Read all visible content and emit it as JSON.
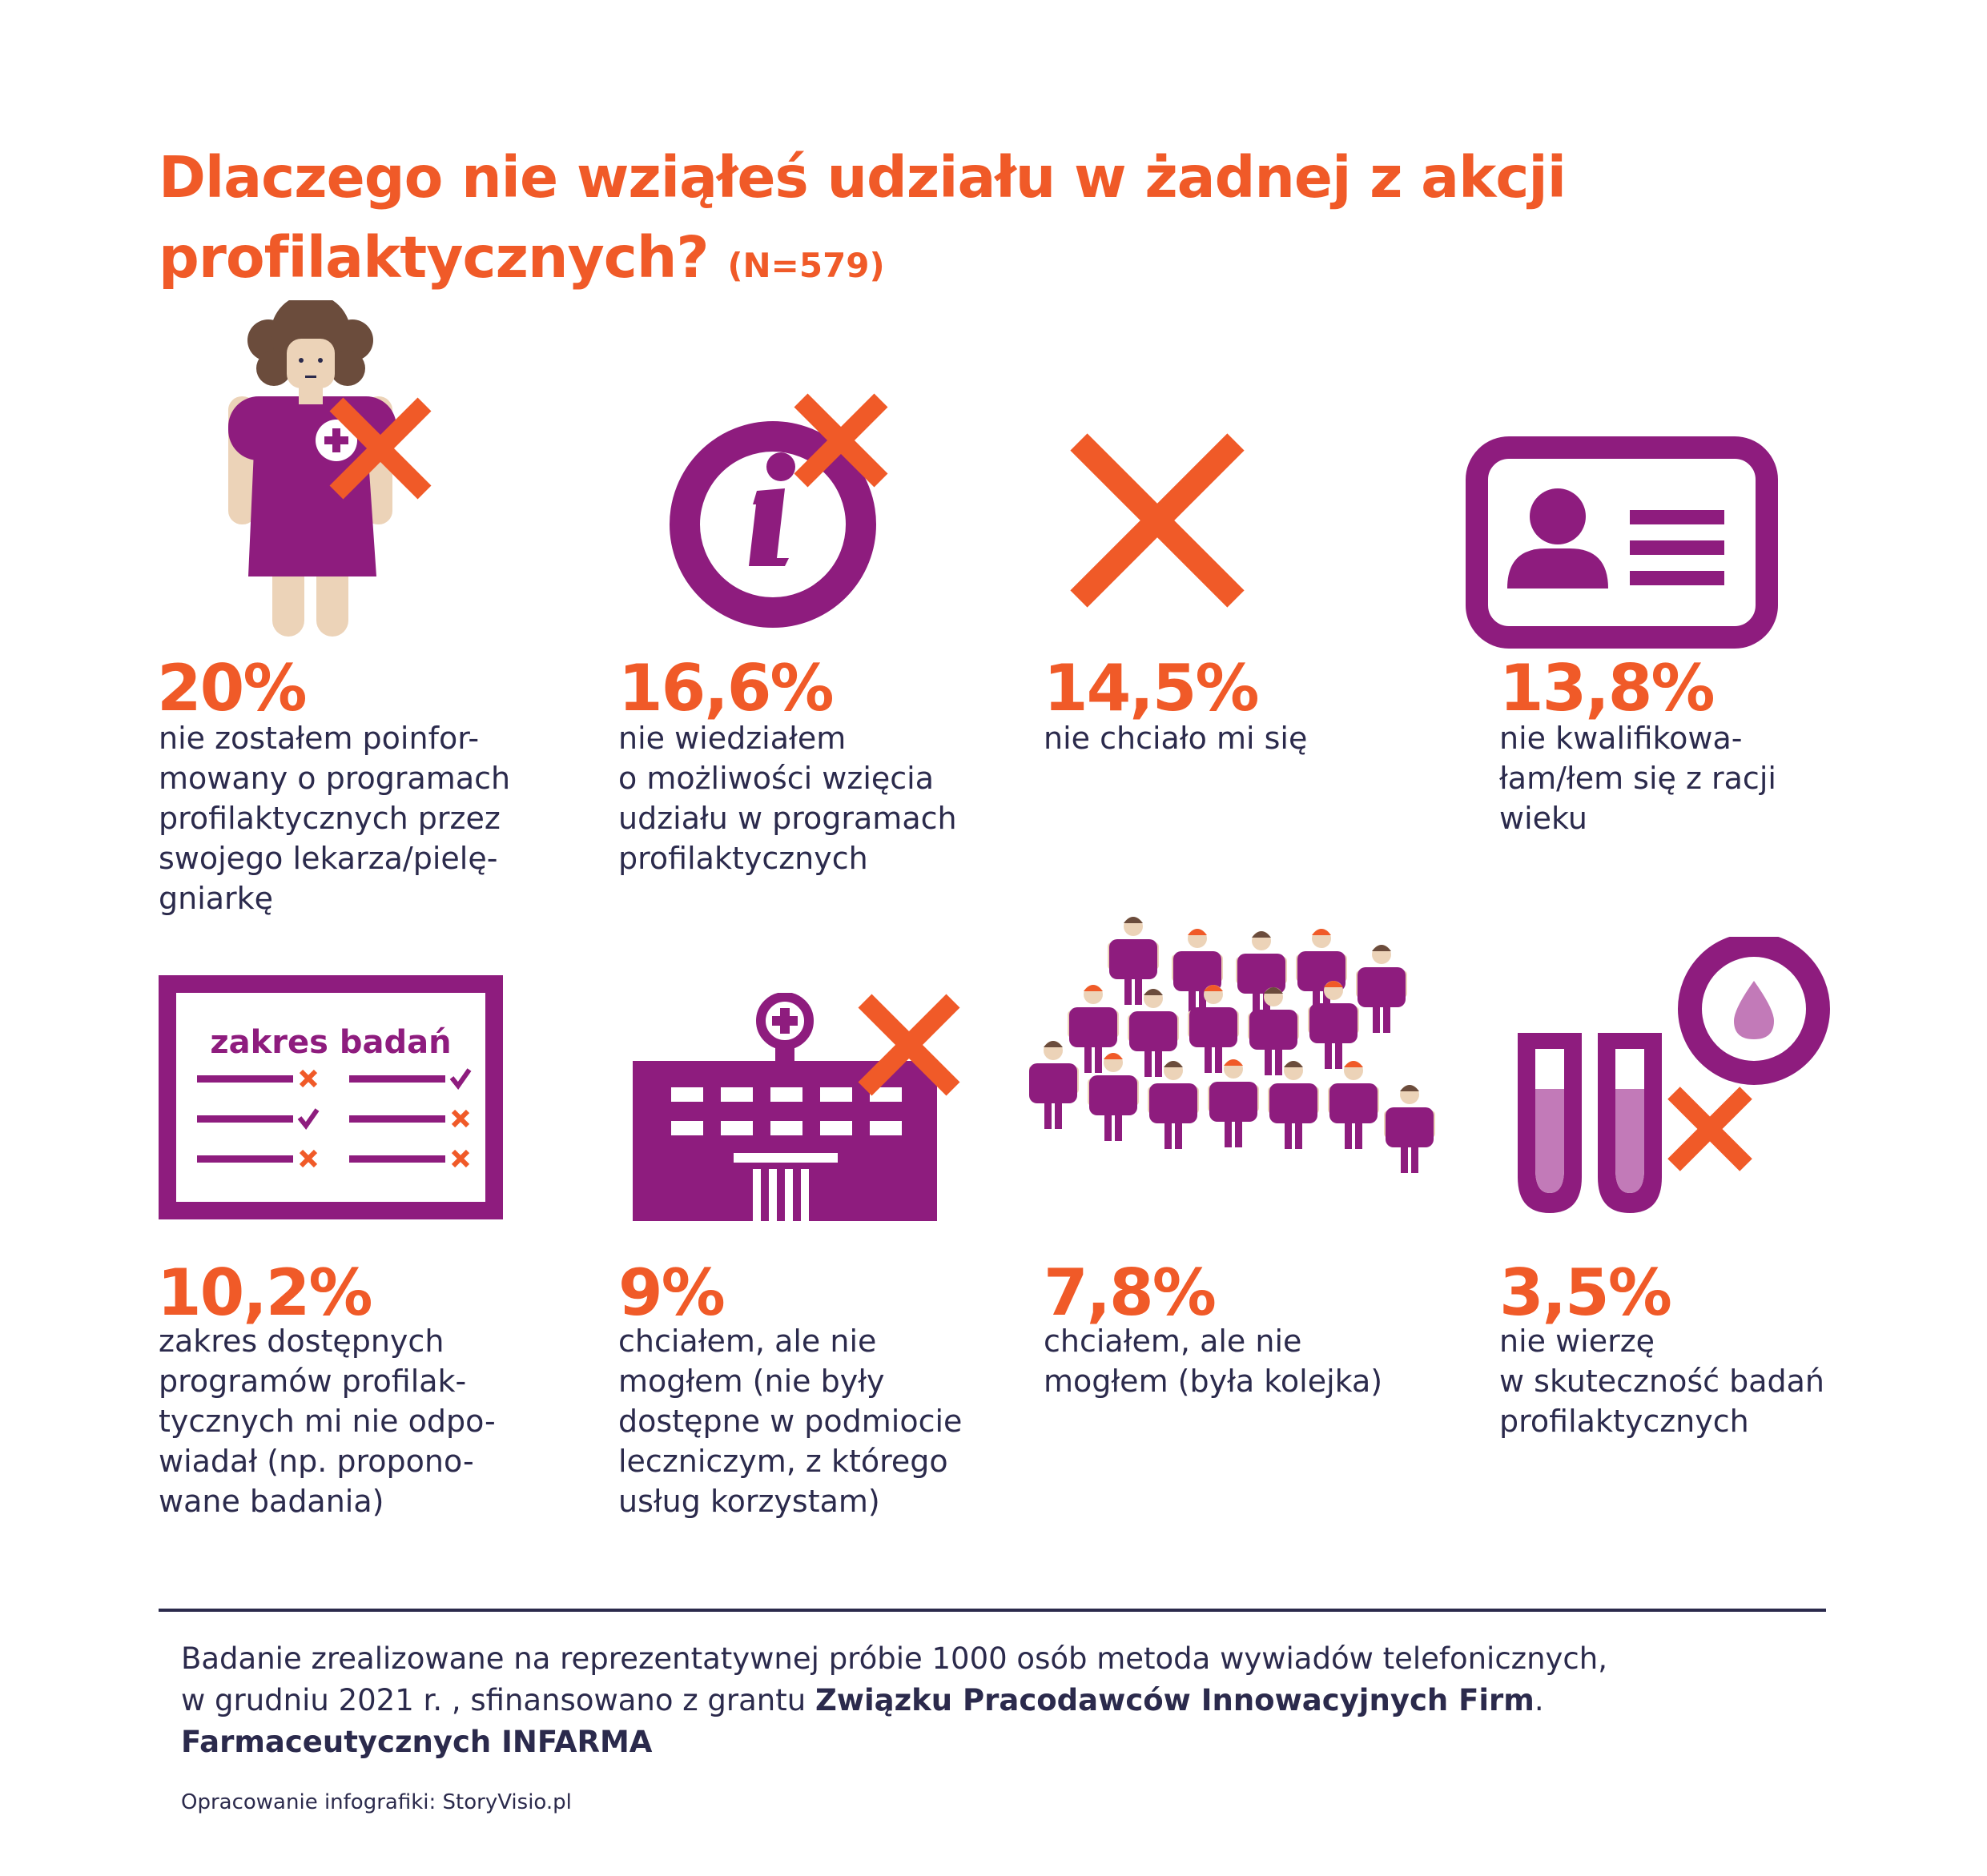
{
  "title": {
    "line1": "Dlaczego nie wziąłeś udziału w żadnej z akcji",
    "line2": "profilaktycznych?",
    "sample": "(N=579)"
  },
  "chart_data": {
    "type": "table",
    "title": "Dlaczego nie wziąłeś udziału w żadnej z akcji profilaktycznych? (N=579)",
    "unit": "%",
    "items": [
      {
        "value": 20.0,
        "label": "20%",
        "text": "nie zostałem poinformowany o programach profilaktycznych przez swojego lekarza/pielęgniarkę",
        "icon": "doctor-crossed-icon"
      },
      {
        "value": 16.6,
        "label": "16,6%",
        "text": "nie wiedziałem o możliwości wzięcia udziału w programach profilaktycznych",
        "icon": "info-crossed-icon"
      },
      {
        "value": 14.5,
        "label": "14,5%",
        "text": "nie chciało mi się",
        "icon": "cross-icon"
      },
      {
        "value": 13.8,
        "label": "13,8%",
        "text": "nie kwalifikowałam/łem się z racji wieku",
        "icon": "id-card-icon"
      },
      {
        "value": 10.2,
        "label": "10,2%",
        "text": "zakres dostępnych programów profilaktycznych mi nie odpowiadał (np. proponowane badania)",
        "icon": "checklist-icon"
      },
      {
        "value": 9.0,
        "label": "9%",
        "text": "chciałem, ale nie mogłem (nie były dostępne w podmiocie leczniczym, z którego usług korzystam)",
        "icon": "hospital-crossed-icon"
      },
      {
        "value": 7.8,
        "label": "7,8%",
        "text": "chciałem, ale nie mogłem (była kolejka)",
        "icon": "crowd-icon"
      },
      {
        "value": 3.5,
        "label": "3,5%",
        "text": "nie wierzę w skuteczność badań profilaktycznych",
        "icon": "test-tubes-crossed-icon"
      }
    ]
  },
  "desc_lines": [
    [
      "nie zostałem poinfor-",
      "mowany o programach",
      "profilaktycznych przez",
      "swojego lekarza/pielę-",
      "gniarkę"
    ],
    [
      "nie wiedziałem",
      "o możliwości wzięcia",
      "udziału w programach",
      "profilaktycznych"
    ],
    [
      "nie chciało mi się"
    ],
    [
      "nie kwalifikowa-",
      "łam/łem się z racji",
      "wieku"
    ],
    [
      "zakres dostępnych",
      "programów profilak-",
      "tycznych mi nie odpo-",
      "wiadał (np. propono-",
      "wane badania)"
    ],
    [
      "chciałem, ale nie",
      "mogłem (nie były",
      "dostępne w podmiocie",
      "leczniczym, z którego",
      "usług korzystam)"
    ],
    [
      "chciałem, ale nie",
      "mogłem (była kolejka)"
    ],
    [
      "nie wierzę",
      "w skuteczność badań",
      "profilaktycznych"
    ]
  ],
  "checklist": {
    "heading": "zakres badań"
  },
  "footer": {
    "line1": "Badanie zrealizowane na reprezentatywnej próbie 1000 osób metoda wywiadów telefonicznych,",
    "line2_pre": "w grudniu 2021 r. , sfinansowano z grantu ",
    "line2_bold": "Związku Pracodawców Innowacyjnych Firm",
    "line2_post": ".",
    "line3_bold": "Farmaceutycznych INFARMA",
    "credit": "Opracowanie infografiki: StoryVisio.pl"
  },
  "colors": {
    "accent": "#f05a28",
    "purple": "#8e1c7e",
    "light_purple": "#c27ab8",
    "skin": "#ecd3b8",
    "hair": "#6b4c3c",
    "text": "#2b2a4c"
  }
}
